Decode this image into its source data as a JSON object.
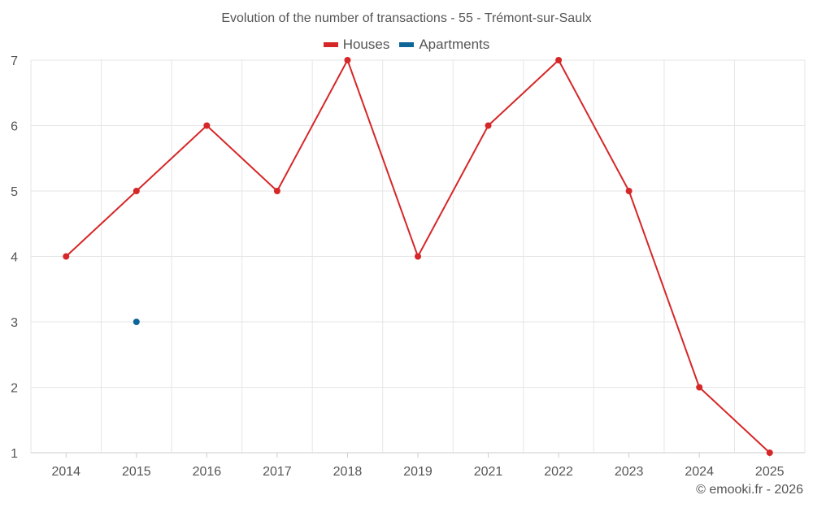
{
  "chart_data": {
    "type": "line",
    "title": "Evolution of the number of transactions - 55 - Trémont-sur-Saulx",
    "categories": [
      "2014",
      "2015",
      "2016",
      "2017",
      "2018",
      "2019",
      "2021",
      "2022",
      "2023",
      "2024",
      "2025"
    ],
    "series": [
      {
        "name": "Houses",
        "color": "#d62728",
        "values": [
          4,
          5,
          6,
          5,
          7,
          4,
          6,
          7,
          5,
          2,
          1
        ]
      },
      {
        "name": "Apartments",
        "color": "#0e6597",
        "values": [
          null,
          3,
          null,
          null,
          null,
          null,
          null,
          null,
          null,
          null,
          null
        ]
      }
    ],
    "y_ticks": [
      "1",
      "2",
      "3",
      "4",
      "5",
      "6",
      "7"
    ],
    "ylim": [
      1,
      7
    ],
    "grid": true,
    "legend_position": "top-center"
  },
  "credit": "© emooki.fr - 2026"
}
